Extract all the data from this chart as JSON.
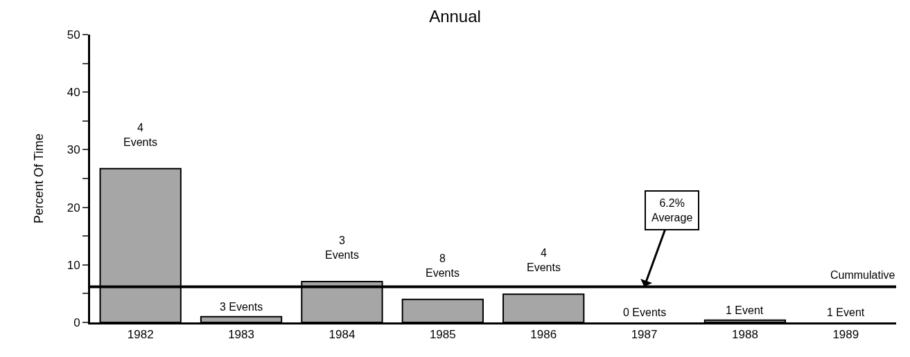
{
  "chart_data": {
    "type": "bar",
    "title": "Annual",
    "ylabel": "Percent Of Time",
    "categories": [
      "1982",
      "1983",
      "1984",
      "1985",
      "1986",
      "1987",
      "1988",
      "1989"
    ],
    "values": [
      26.7,
      1.0,
      7.1,
      4.0,
      4.9,
      0,
      0.4,
      0
    ],
    "color": "#a6a6a6",
    "ylim": [
      0,
      50
    ],
    "yticks": [
      0,
      {
        "value": 5,
        "label": null
      },
      10,
      {
        "value": 15,
        "label": null
      },
      20,
      {
        "value": 25,
        "label": null
      },
      30,
      {
        "value": 35,
        "label": null
      },
      40,
      {
        "value": 45,
        "label": null
      },
      50
    ],
    "ref_lines": [
      {
        "axis": "y",
        "value": 6.2,
        "label": "Cummulative",
        "color": "#000000"
      }
    ],
    "annotations": [
      {
        "text": "6.2%\nAverage",
        "x": "1987",
        "y": 6.2
      },
      {
        "text": "4\nEvents",
        "x": "1982",
        "y": 26.7
      },
      {
        "text": "3 Events",
        "x": "1983",
        "y": 1.0
      },
      {
        "text": "3\nEvents",
        "x": "1984",
        "y": 7.1
      },
      {
        "text": "8\nEvents",
        "x": "1985",
        "y": 4.0
      },
      {
        "text": "4\nEvents",
        "x": "1986",
        "y": 4.9
      },
      {
        "text": "0 Events",
        "x": "1987",
        "y": 0
      },
      {
        "text": "1 Event",
        "x": "1988",
        "y": 0.4
      },
      {
        "text": "1 Event",
        "x": "1989",
        "y": 0
      }
    ]
  }
}
